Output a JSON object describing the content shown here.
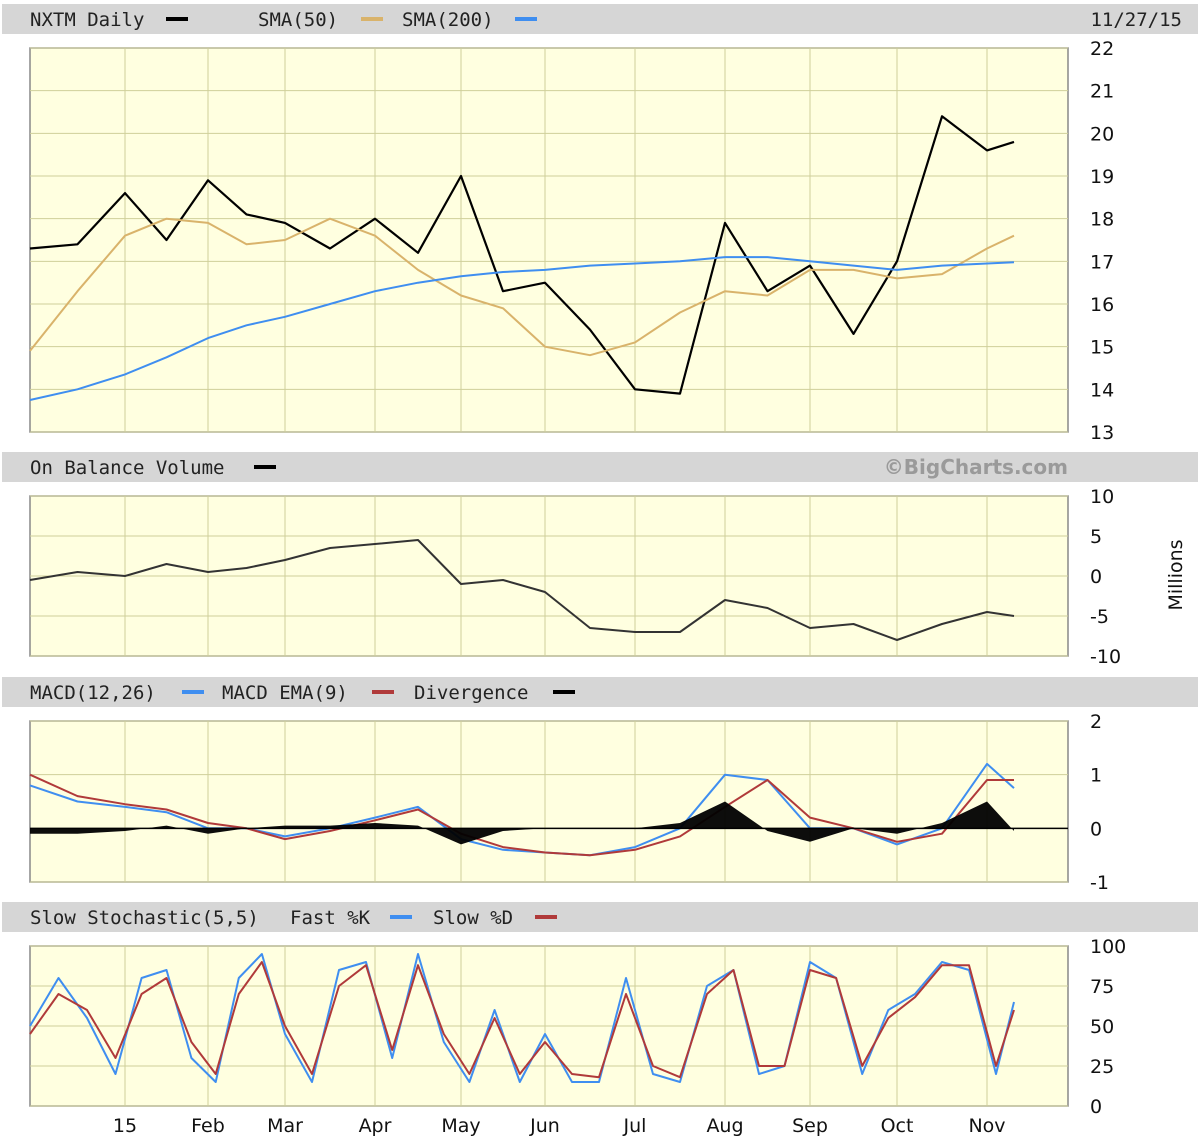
{
  "header": {
    "ticker_label": "NXTM Daily",
    "sma50_label": "SMA(50)",
    "sma200_label": "SMA(200)",
    "date": "11/27/15"
  },
  "obv_header": {
    "label": "On Balance Volume",
    "credit": "©BigCharts.com",
    "unit": "Millions"
  },
  "macd_header": {
    "macd_label": "MACD(12,26)",
    "ema_label": "MACD EMA(9)",
    "div_label": "Divergence"
  },
  "stoch_header": {
    "label": "Slow Stochastic(5,5)",
    "fast_label": "Fast %K",
    "slow_label": "Slow %D"
  },
  "colors": {
    "price": "#000000",
    "sma50": "#d9b36b",
    "sma200": "#3f8ef0",
    "obv": "#333333",
    "macd": "#3f8ef0",
    "ema": "#b03a3a",
    "divergence": "#000000",
    "fastK": "#3f8ef0",
    "slowD": "#b03a3a",
    "panel_bg": "#ffffe0",
    "grid": "#cfcf9a",
    "header_bg": "#d6d6d6"
  },
  "x_labels": [
    "15",
    "Feb",
    "Mar",
    "Apr",
    "May",
    "Jun",
    "Jul",
    "Aug",
    "Sep",
    "Oct",
    "Nov"
  ],
  "chart_data": [
    {
      "type": "line",
      "name": "price",
      "ylim": [
        13,
        22
      ],
      "yticks": [
        22,
        21,
        20,
        19,
        18,
        17,
        16,
        15,
        14,
        13
      ],
      "x_months": [
        0,
        0.5,
        1,
        1.5,
        2,
        2.5,
        3,
        3.5,
        4,
        4.5,
        5,
        5.5,
        6,
        6.5,
        7,
        7.5,
        8,
        8.5,
        9,
        9.5,
        10,
        10.5,
        11,
        11.3
      ],
      "series": [
        {
          "name": "NXTM Daily",
          "values": [
            17.3,
            17.4,
            18.6,
            17.5,
            18.9,
            18.1,
            17.9,
            17.3,
            18.0,
            17.2,
            19.0,
            16.3,
            16.5,
            15.4,
            14.0,
            13.9,
            17.9,
            16.3,
            16.9,
            15.3,
            17.0,
            20.4,
            19.6,
            19.8
          ]
        },
        {
          "name": "SMA(50)",
          "values": [
            14.9,
            16.3,
            17.6,
            18.0,
            17.9,
            17.4,
            17.5,
            18.0,
            17.6,
            16.8,
            16.2,
            15.9,
            15.0,
            14.8,
            15.1,
            15.8,
            16.3,
            16.2,
            16.8,
            16.8,
            16.6,
            16.7,
            17.3,
            17.6
          ]
        },
        {
          "name": "SMA(200)",
          "values": [
            13.75,
            14.0,
            14.35,
            14.75,
            15.2,
            15.5,
            15.7,
            16.0,
            16.3,
            16.5,
            16.65,
            16.75,
            16.8,
            16.9,
            16.95,
            17.0,
            17.1,
            17.1,
            17.0,
            16.9,
            16.8,
            16.9,
            16.95,
            16.98
          ]
        }
      ]
    },
    {
      "type": "line",
      "name": "obv",
      "ylim": [
        -10,
        10
      ],
      "yticks": [
        10,
        5,
        0,
        -5,
        -10
      ],
      "x_months": [
        0,
        0.5,
        1,
        1.5,
        2,
        2.5,
        3,
        3.5,
        4,
        4.5,
        5,
        5.5,
        6,
        6.5,
        7,
        7.5,
        8,
        8.5,
        9,
        9.5,
        10,
        10.5,
        11,
        11.3
      ],
      "series": [
        {
          "name": "On Balance Volume",
          "values": [
            -0.5,
            0.5,
            0,
            1.5,
            0.5,
            1.0,
            2.0,
            3.5,
            4.0,
            4.5,
            -1.0,
            -0.5,
            -2.0,
            -6.5,
            -7.0,
            -7.0,
            -3.0,
            -4.0,
            -6.5,
            -6.0,
            -8.0,
            -6.0,
            -4.5,
            -5.0
          ]
        }
      ]
    },
    {
      "type": "line",
      "name": "macd",
      "ylim": [
        -1,
        2
      ],
      "yticks": [
        2,
        1,
        0,
        -1
      ],
      "x_months": [
        0,
        0.5,
        1,
        1.5,
        2,
        2.5,
        3,
        3.5,
        4,
        4.5,
        5,
        5.5,
        6,
        6.5,
        7,
        7.5,
        8,
        8.5,
        9,
        9.5,
        10,
        10.5,
        11,
        11.3
      ],
      "series": [
        {
          "name": "MACD(12,26)",
          "values": [
            0.8,
            0.5,
            0.4,
            0.3,
            0.0,
            0.0,
            -0.15,
            0.0,
            0.2,
            0.4,
            -0.2,
            -0.4,
            -0.45,
            -0.5,
            -0.35,
            0.0,
            1.0,
            0.9,
            0.0,
            0.0,
            -0.3,
            0.0,
            1.2,
            0.75
          ]
        },
        {
          "name": "MACD EMA(9)",
          "values": [
            1.0,
            0.6,
            0.45,
            0.35,
            0.1,
            0.0,
            -0.2,
            -0.05,
            0.15,
            0.35,
            -0.1,
            -0.35,
            -0.45,
            -0.5,
            -0.4,
            -0.15,
            0.4,
            0.9,
            0.2,
            0.0,
            -0.25,
            -0.1,
            0.9,
            0.9
          ]
        },
        {
          "name": "Divergence",
          "values": [
            -0.1,
            -0.1,
            -0.05,
            0.05,
            -0.1,
            0.0,
            0.05,
            0.05,
            0.1,
            0.05,
            -0.3,
            -0.05,
            0.0,
            0.0,
            0.0,
            0.1,
            0.5,
            -0.05,
            -0.25,
            0.0,
            -0.1,
            0.1,
            0.5,
            -0.05
          ]
        }
      ]
    },
    {
      "type": "line",
      "name": "stochastic",
      "ylim": [
        0,
        100
      ],
      "yticks": [
        100,
        75,
        50,
        25,
        0
      ],
      "x_months": [
        0,
        0.3,
        0.6,
        0.9,
        1.2,
        1.5,
        1.8,
        2.1,
        2.4,
        2.7,
        3.0,
        3.3,
        3.6,
        3.9,
        4.2,
        4.5,
        4.8,
        5.1,
        5.4,
        5.7,
        6.0,
        6.3,
        6.6,
        6.9,
        7.2,
        7.5,
        7.8,
        8.1,
        8.4,
        8.7,
        9.0,
        9.3,
        9.6,
        9.9,
        10.2,
        10.5,
        10.8,
        11.1,
        11.3
      ],
      "series": [
        {
          "name": "Fast %K",
          "values": [
            50,
            80,
            55,
            20,
            80,
            85,
            30,
            15,
            80,
            95,
            45,
            15,
            85,
            90,
            30,
            95,
            40,
            15,
            60,
            15,
            45,
            15,
            15,
            80,
            20,
            15,
            75,
            85,
            20,
            25,
            90,
            80,
            20,
            60,
            70,
            90,
            85,
            20,
            65
          ]
        },
        {
          "name": "Slow %D",
          "values": [
            45,
            70,
            60,
            30,
            70,
            80,
            40,
            20,
            70,
            90,
            50,
            20,
            75,
            88,
            35,
            88,
            45,
            20,
            55,
            20,
            40,
            20,
            18,
            70,
            25,
            18,
            70,
            85,
            25,
            25,
            85,
            80,
            25,
            55,
            68,
            88,
            88,
            25,
            60
          ]
        }
      ]
    }
  ]
}
